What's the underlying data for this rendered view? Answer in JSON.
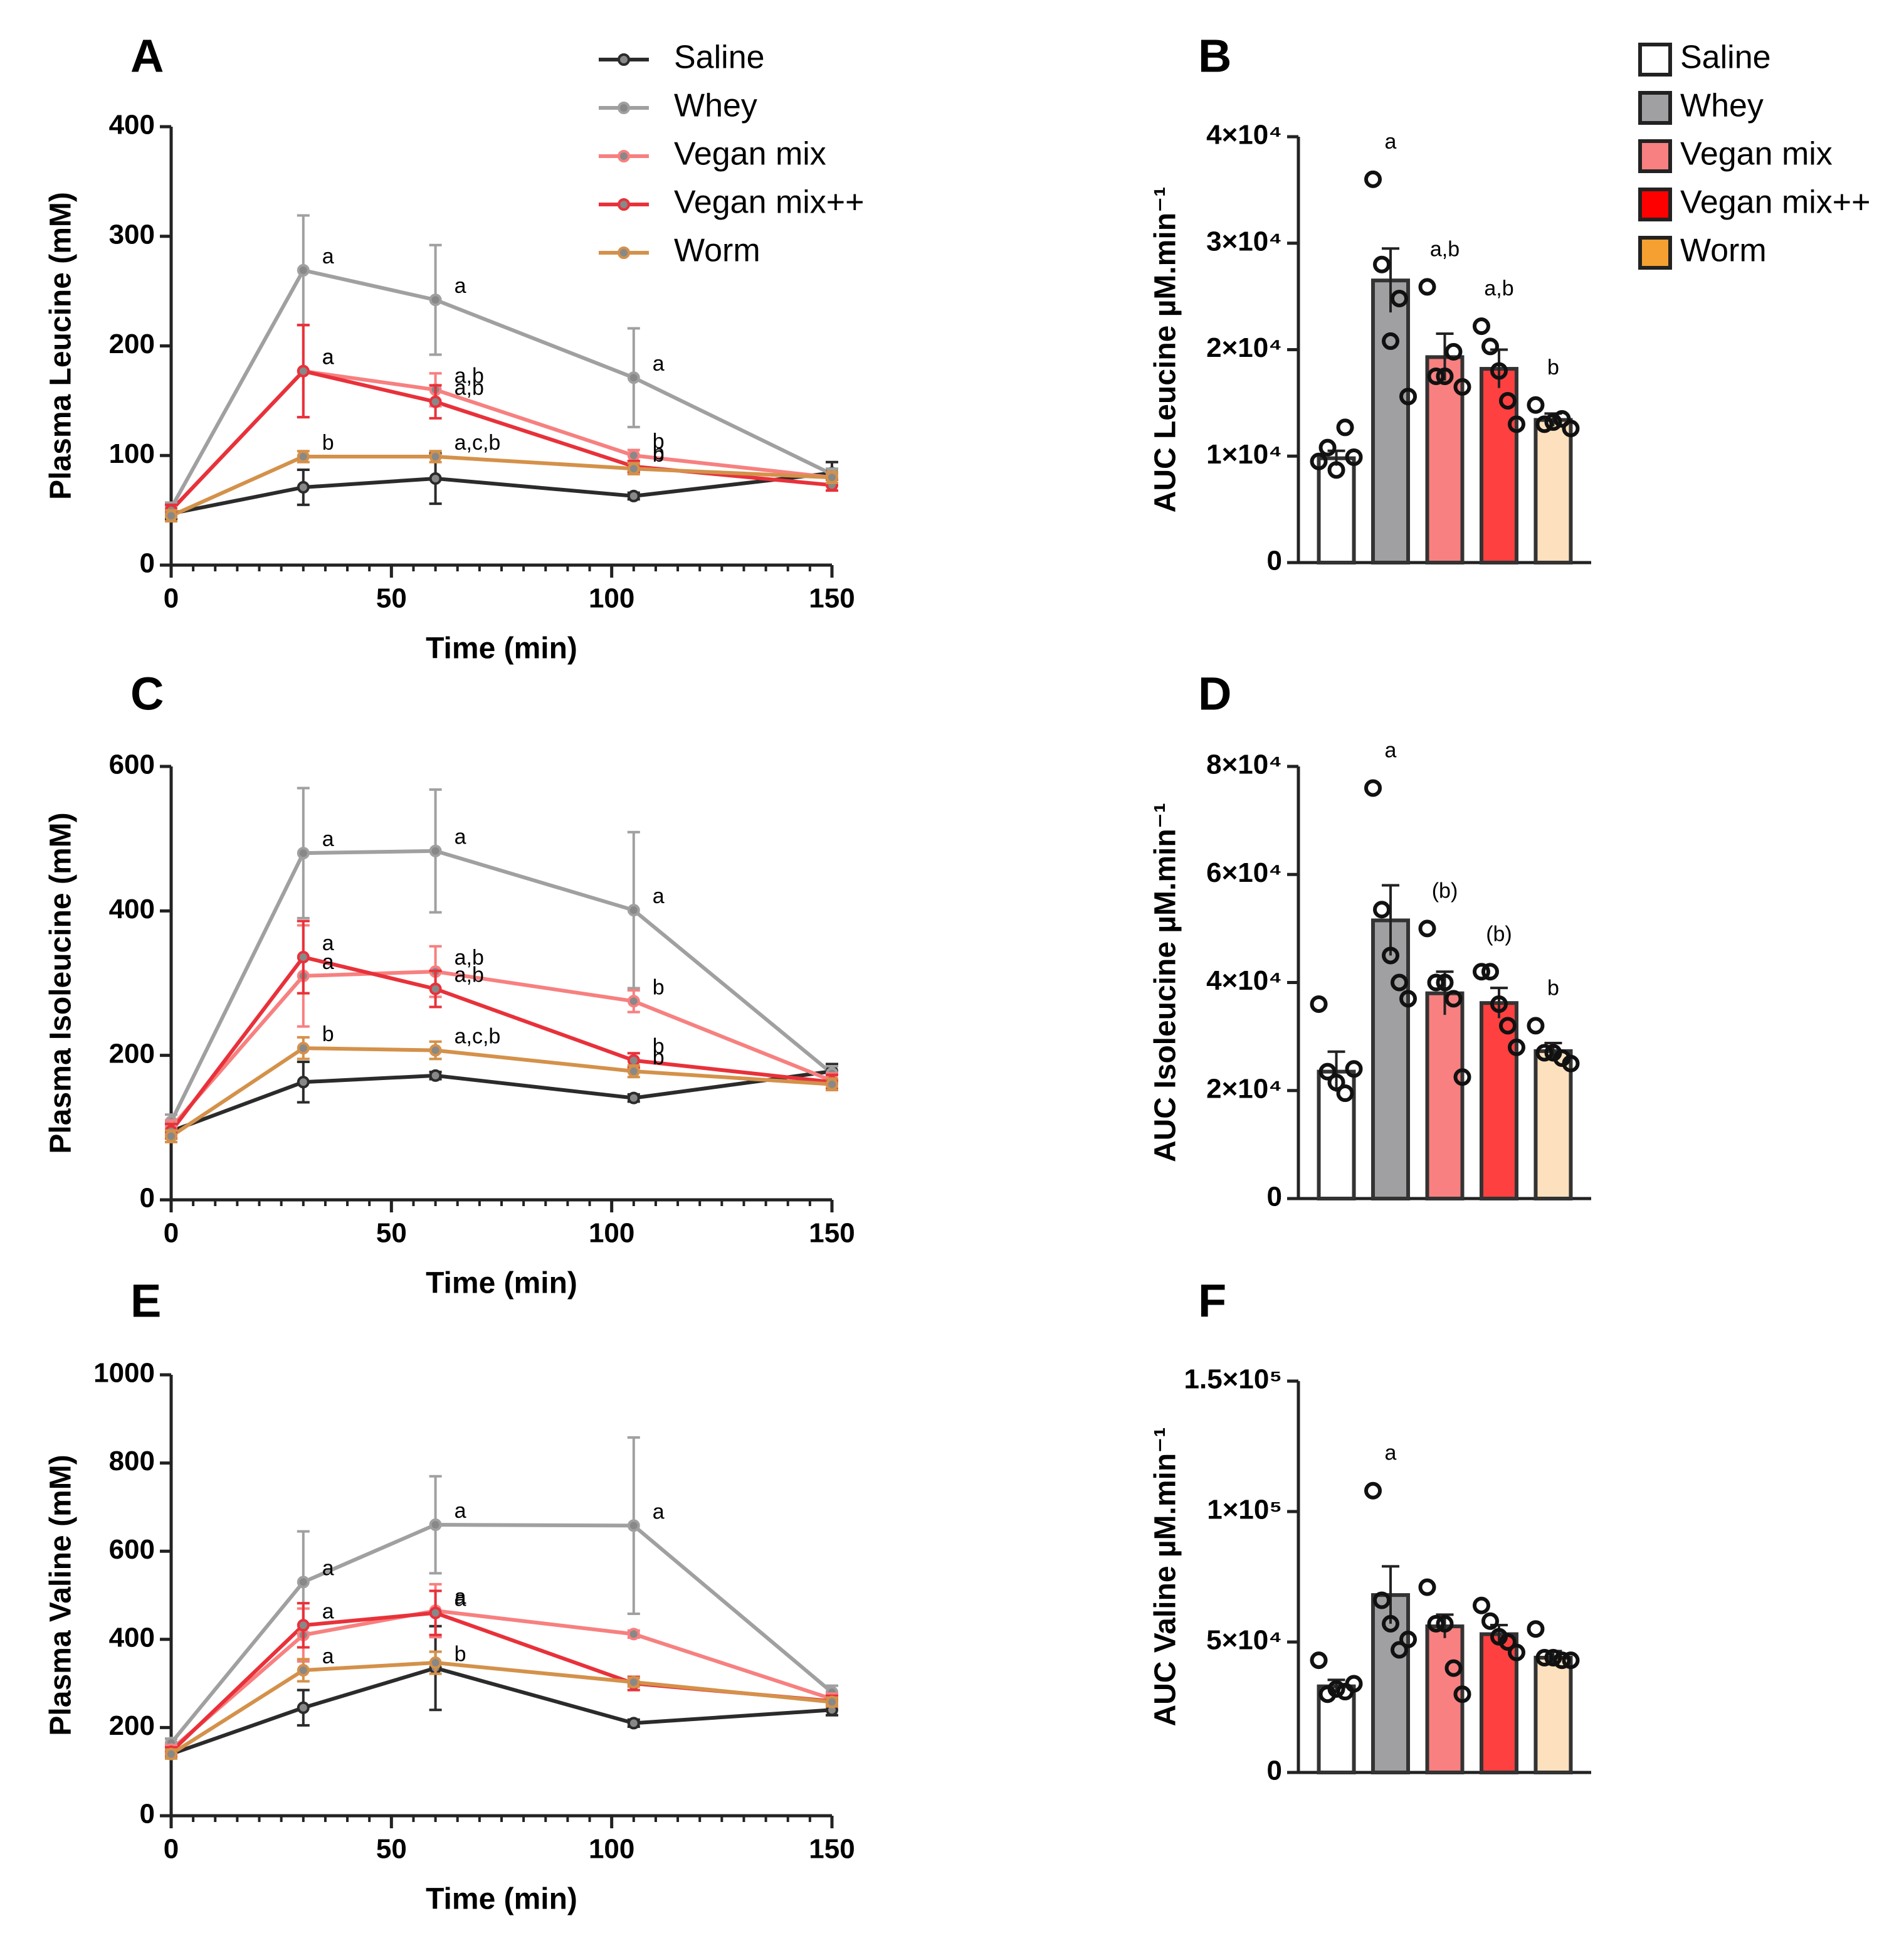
{
  "chart_data": [
    {
      "type": "line",
      "panel": "A",
      "ylabel": "Plasma Leucine (mM)",
      "xlabel": "Time (min)",
      "x": [
        0,
        30,
        60,
        105,
        150
      ],
      "xlim": [
        0,
        150
      ],
      "xticks": [
        0,
        50,
        100,
        150
      ],
      "minor_step": 5,
      "ylim": [
        0,
        400
      ],
      "yticks": [
        0,
        100,
        200,
        300,
        400
      ],
      "legend": true,
      "series": [
        {
          "name": "Saline",
          "color": "#2b2b2b",
          "values": [
            47,
            71,
            79,
            63,
            84
          ],
          "errors": [
            5,
            16,
            23,
            3,
            10
          ],
          "labels": [
            null,
            null,
            null,
            null,
            null
          ]
        },
        {
          "name": "Whey",
          "color": "#a0a0a0",
          "values": [
            52,
            269,
            242,
            171,
            83
          ],
          "errors": [
            5,
            50,
            50,
            45,
            5
          ],
          "labels": [
            null,
            "a",
            "a",
            "a",
            null
          ]
        },
        {
          "name": "Vegan mix",
          "color": "#f78080",
          "values": [
            50,
            177,
            160,
            100,
            80
          ],
          "errors": [
            5,
            42,
            15,
            5,
            5
          ],
          "labels": [
            null,
            "a",
            "a,b",
            "b",
            null
          ]
        },
        {
          "name": "Vegan mix++",
          "color": "#e8313a",
          "values": [
            50,
            177,
            149,
            90,
            73
          ],
          "errors": [
            5,
            42,
            15,
            5,
            5
          ],
          "labels": [
            null,
            "a",
            "a,b",
            "b",
            null
          ]
        },
        {
          "name": "Worm",
          "color": "#d4914a",
          "values": [
            45,
            99,
            99,
            88,
            80
          ],
          "errors": [
            5,
            5,
            5,
            5,
            5
          ],
          "labels": [
            null,
            "b",
            "a,c,b",
            "b",
            null
          ]
        }
      ]
    },
    {
      "type": "bar",
      "panel": "B",
      "ylabel": "AUC Leucine µM.min⁻¹",
      "legend": true,
      "categories": [
        "Saline",
        "Whey",
        "Vegan mix",
        "Vegan mix++",
        "Worm"
      ],
      "colors": [
        "#ffffff",
        "#a0a0a2",
        "#f98080",
        "#ff4040",
        "#fde0bd"
      ],
      "legend_colors": [
        "#ffffff",
        "#a0a0a2",
        "#f98080",
        "#ff0000",
        "#f5a030"
      ],
      "values": [
        9800,
        26500,
        19300,
        18200,
        13400
      ],
      "errors": [
        700,
        3000,
        2200,
        1800,
        600
      ],
      "points": [
        [
          9500,
          10800,
          8700,
          12700,
          9900
        ],
        [
          36000,
          28000,
          20800,
          24800,
          15600
        ],
        [
          25900,
          17500,
          17500,
          19800,
          16500
        ],
        [
          22200,
          20300,
          18000,
          15200,
          13000
        ],
        [
          14800,
          13000,
          13200,
          13500,
          12600
        ]
      ],
      "letters": [
        null,
        "a",
        "a,b",
        "a,b",
        "b"
      ],
      "ylim": [
        0,
        40000
      ],
      "yticks": [
        0,
        {
          "value": 10000,
          "label": "1×10⁴"
        },
        {
          "value": 20000,
          "label": "2×10⁴"
        },
        {
          "value": 30000,
          "label": "3×10⁴"
        },
        {
          "value": 40000,
          "label": "4×10⁴"
        }
      ]
    },
    {
      "type": "line",
      "panel": "C",
      "ylabel": "Plasma Isoleucine (mM)",
      "xlabel": "Time (min)",
      "x": [
        0,
        30,
        60,
        105,
        150
      ],
      "xlim": [
        0,
        150
      ],
      "xticks": [
        0,
        50,
        100,
        150
      ],
      "minor_step": 5,
      "ylim": [
        0,
        600
      ],
      "yticks": [
        0,
        200,
        400,
        600
      ],
      "series": [
        {
          "name": "Saline",
          "color": "#2b2b2b",
          "values": [
            95,
            163,
            172,
            141,
            178
          ],
          "errors": [
            10,
            28,
            5,
            5,
            10
          ],
          "labels": [
            null,
            null,
            null,
            null,
            null
          ]
        },
        {
          "name": "Whey",
          "color": "#a0a0a0",
          "values": [
            108,
            480,
            483,
            401,
            175
          ],
          "errors": [
            10,
            90,
            85,
            108,
            10
          ],
          "labels": [
            null,
            "a",
            "a",
            "a",
            null
          ]
        },
        {
          "name": "Vegan mix",
          "color": "#f78080",
          "values": [
            100,
            310,
            316,
            275,
            165
          ],
          "errors": [
            10,
            70,
            35,
            15,
            10
          ],
          "labels": [
            null,
            "a",
            "a,b",
            "b",
            null
          ]
        },
        {
          "name": "Vegan mix++",
          "color": "#e8313a",
          "values": [
            95,
            336,
            292,
            193,
            163
          ],
          "errors": [
            10,
            50,
            25,
            10,
            10
          ],
          "labels": [
            null,
            "a",
            "a,b",
            "b",
            null
          ]
        },
        {
          "name": "Worm",
          "color": "#d4914a",
          "values": [
            88,
            210,
            207,
            178,
            160
          ],
          "errors": [
            8,
            15,
            12,
            8,
            8
          ],
          "labels": [
            null,
            "b",
            "a,c,b",
            "b",
            null
          ]
        }
      ]
    },
    {
      "type": "bar",
      "panel": "D",
      "ylabel": "AUC Isoleucine µM.min⁻¹",
      "categories": [
        "Saline",
        "Whey",
        "Vegan mix",
        "Vegan mix++",
        "Worm"
      ],
      "colors": [
        "#ffffff",
        "#a0a0a2",
        "#f98080",
        "#ff4040",
        "#fde0bd"
      ],
      "values": [
        23500,
        51500,
        38000,
        36200,
        27300
      ],
      "errors": [
        3700,
        6500,
        4000,
        2800,
        1500
      ],
      "points": [
        [
          36000,
          23500,
          21500,
          19500,
          24000
        ],
        [
          76000,
          53500,
          45000,
          40000,
          37000
        ],
        [
          50000,
          40000,
          40000,
          37000,
          22500
        ],
        [
          42000,
          42000,
          36000,
          32000,
          28000
        ],
        [
          32000,
          27000,
          27000,
          26000,
          25000
        ]
      ],
      "letters": [
        null,
        "a",
        "(b)",
        "(b)",
        "b"
      ],
      "ylim": [
        0,
        80000
      ],
      "yticks": [
        0,
        {
          "value": 20000,
          "label": "2×10⁴"
        },
        {
          "value": 40000,
          "label": "4×10⁴"
        },
        {
          "value": 60000,
          "label": "6×10⁴"
        },
        {
          "value": 80000,
          "label": "8×10⁴"
        }
      ]
    },
    {
      "type": "line",
      "panel": "E",
      "ylabel": "Plasma Valine (mM)",
      "xlabel": "Time (min)",
      "x": [
        0,
        30,
        60,
        105,
        150
      ],
      "xlim": [
        0,
        150
      ],
      "xticks": [
        0,
        50,
        100,
        150
      ],
      "minor_step": 5,
      "ylim": [
        0,
        1000
      ],
      "yticks": [
        0,
        200,
        400,
        600,
        800,
        1000
      ],
      "series": [
        {
          "name": "Saline",
          "color": "#2b2b2b",
          "values": [
            140,
            245,
            335,
            210,
            240
          ],
          "errors": [
            10,
            40,
            95,
            8,
            12
          ],
          "labels": [
            null,
            null,
            "b",
            null,
            null
          ]
        },
        {
          "name": "Whey",
          "color": "#a0a0a0",
          "values": [
            165,
            530,
            660,
            658,
            280
          ],
          "errors": [
            10,
            115,
            110,
            200,
            15
          ],
          "labels": [
            null,
            "a",
            "a",
            "a",
            null
          ]
        },
        {
          "name": "Vegan mix",
          "color": "#f78080",
          "values": [
            150,
            410,
            465,
            412,
            265
          ],
          "errors": [
            10,
            60,
            60,
            8,
            12
          ],
          "labels": [
            null,
            null,
            "a",
            null,
            null
          ]
        },
        {
          "name": "Vegan mix++",
          "color": "#e8313a",
          "values": [
            145,
            432,
            460,
            300,
            260
          ],
          "errors": [
            10,
            50,
            50,
            15,
            12
          ],
          "labels": [
            null,
            "a",
            "a",
            null,
            null
          ]
        },
        {
          "name": "Worm",
          "color": "#d4914a",
          "values": [
            140,
            330,
            347,
            303,
            258
          ],
          "errors": [
            10,
            25,
            25,
            10,
            10
          ],
          "labels": [
            null,
            "a",
            null,
            null,
            null
          ]
        }
      ]
    },
    {
      "type": "bar",
      "panel": "F",
      "ylabel": "AUC Valine µM.min⁻¹",
      "categories": [
        "Saline",
        "Whey",
        "Vegan mix",
        "Vegan mix++",
        "Worm"
      ],
      "colors": [
        "#ffffff",
        "#a0a0a2",
        "#f98080",
        "#ff4040",
        "#fde0bd"
      ],
      "values": [
        33000,
        68000,
        56000,
        53000,
        44000
      ],
      "errors": [
        2500,
        11000,
        4500,
        3500,
        2500
      ],
      "points": [
        [
          43000,
          30000,
          32000,
          31000,
          34000
        ],
        [
          108000,
          66000,
          57000,
          47000,
          51000
        ],
        [
          71000,
          57000,
          57000,
          40000,
          30000
        ],
        [
          64000,
          58000,
          52000,
          50000,
          46000
        ],
        [
          55000,
          44000,
          44000,
          43000,
          43000
        ]
      ],
      "letters": [
        null,
        "a",
        null,
        null,
        null
      ],
      "ylim": [
        0,
        150000
      ],
      "yticks": [
        0,
        {
          "value": 50000,
          "label": "5×10⁴"
        },
        {
          "value": 100000,
          "label": "1×10⁵"
        },
        {
          "value": 150000,
          "label": "1.5×10⁵"
        }
      ]
    }
  ]
}
